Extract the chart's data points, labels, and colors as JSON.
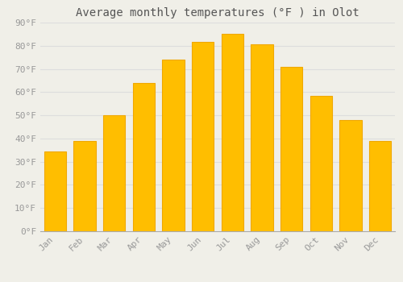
{
  "title": "Average monthly temperatures (°F ) in Olot",
  "months": [
    "Jan",
    "Feb",
    "Mar",
    "Apr",
    "May",
    "Jun",
    "Jul",
    "Aug",
    "Sep",
    "Oct",
    "Nov",
    "Dec"
  ],
  "values": [
    34.5,
    39,
    50,
    64,
    74,
    81.5,
    85,
    80.5,
    71,
    58.5,
    48,
    39
  ],
  "bar_color": "#FFBE00",
  "bar_edge_color": "#F0A800",
  "background_color": "#F0EFE8",
  "grid_color": "#DDDDDD",
  "ylim": [
    0,
    90
  ],
  "yticks": [
    0,
    10,
    20,
    30,
    40,
    50,
    60,
    70,
    80,
    90
  ],
  "ytick_labels": [
    "0°F",
    "10°F",
    "20°F",
    "30°F",
    "40°F",
    "50°F",
    "60°F",
    "70°F",
    "80°F",
    "90°F"
  ],
  "title_fontsize": 10,
  "tick_fontsize": 8,
  "font_family": "monospace"
}
